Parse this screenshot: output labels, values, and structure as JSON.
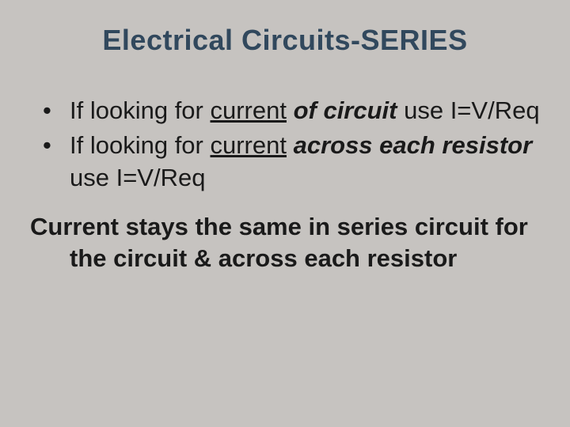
{
  "title": {
    "text": "Electrical Circuits-SERIES",
    "fontsize": 36,
    "color": "#31485d"
  },
  "bullets": {
    "fontsize": 31,
    "items": [
      {
        "prefix": "If looking for ",
        "underlined": "current",
        "bolditalic": " of circuit",
        "suffix": "  use I=V/Req"
      },
      {
        "prefix": "If looking for ",
        "underlined": "current",
        "bolditalic": " across each resistor",
        "suffix": " use I=V/Req"
      }
    ]
  },
  "summary": {
    "fontsize": 31,
    "text": "Current stays the same in series circuit for the circuit & across each resistor"
  },
  "background_color": "#c6c3c0",
  "text_color": "#1a1a1a"
}
